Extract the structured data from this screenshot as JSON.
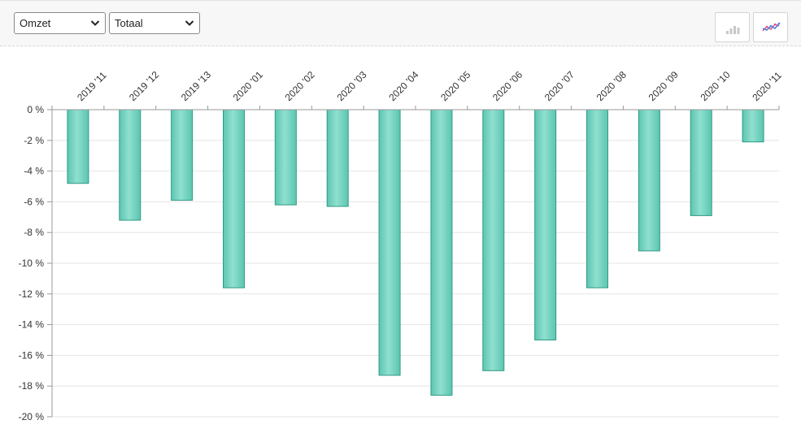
{
  "toolbar": {
    "metric_select": {
      "value": "Omzet"
    },
    "scope_select": {
      "value": "Totaal"
    },
    "bar_chart_button": {
      "icon": "bar-chart-icon",
      "state": "inactive"
    },
    "line_chart_button": {
      "icon": "line-chart-icon",
      "state": "active"
    }
  },
  "colors": {
    "bar_fill": "#5cc5b0",
    "bar_fill_light": "#8fe0cf",
    "bar_stroke": "#2f9c86",
    "gridline": "#e6e6e6",
    "axis": "#9a9a9a"
  },
  "chart_data": {
    "type": "bar",
    "title": "",
    "xlabel": "",
    "ylabel": "",
    "categories": [
      "2019 '11",
      "2019 '12",
      "2019 '13",
      "2020 '01",
      "2020 '02",
      "2020 '03",
      "2020 '04",
      "2020 '05",
      "2020 '06",
      "2020 '07",
      "2020 '08",
      "2020 '09",
      "2020 '10",
      "2020 '11"
    ],
    "values": [
      -4.8,
      -7.2,
      -5.9,
      -11.6,
      -6.2,
      -6.3,
      -17.3,
      -18.6,
      -17.0,
      -15.0,
      -11.6,
      -9.2,
      -6.9,
      -2.1
    ],
    "ylim": [
      -20,
      0
    ],
    "yticks": [
      "0 %",
      "-2 %",
      "-4 %",
      "-6 %",
      "-8 %",
      "-10 %",
      "-12 %",
      "-14 %",
      "-16 %",
      "-18 %",
      "-20 %"
    ],
    "ytick_values": [
      0,
      -2,
      -4,
      -6,
      -8,
      -10,
      -12,
      -14,
      -16,
      -18,
      -20
    ],
    "x_axis_position": "top",
    "grid": true,
    "legend": "none"
  }
}
